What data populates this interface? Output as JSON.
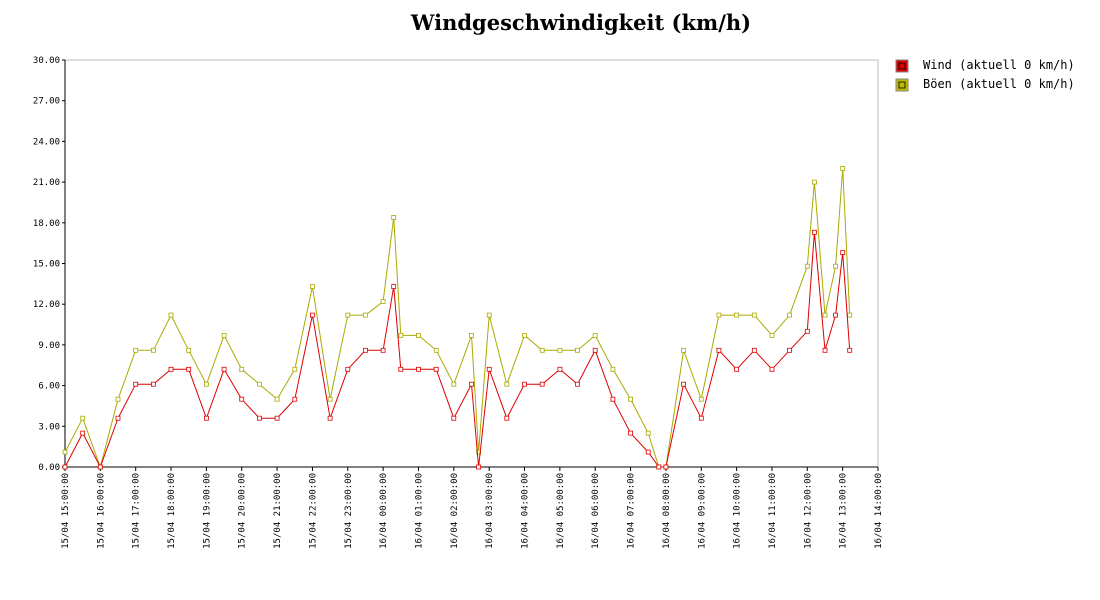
{
  "chart_data": {
    "type": "line",
    "title": "Windgeschwindigkeit (km/h)",
    "xlabel": "",
    "ylabel": "",
    "ylim": [
      0,
      30
    ],
    "yticks": [
      "0.00",
      "3.00",
      "6.00",
      "9.00",
      "12.00",
      "15.00",
      "18.00",
      "21.00",
      "24.00",
      "27.00",
      "30.00"
    ],
    "xlim_hours": [
      15,
      38
    ],
    "xticks": [
      "15/04 15:00:00",
      "15/04 16:00:00",
      "15/04 17:00:00",
      "15/04 18:00:00",
      "15/04 19:00:00",
      "15/04 20:00:00",
      "15/04 21:00:00",
      "15/04 22:00:00",
      "15/04 23:00:00",
      "16/04 00:00:00",
      "16/04 01:00:00",
      "16/04 02:00:00",
      "16/04 03:00:00",
      "16/04 04:00:00",
      "16/04 05:00:00",
      "16/04 06:00:00",
      "16/04 07:00:00",
      "16/04 08:00:00",
      "16/04 09:00:00",
      "16/04 10:00:00",
      "16/04 11:00:00",
      "16/04 12:00:00",
      "16/04 13:00:00",
      "16/04 14:00:00"
    ],
    "legend_position": "top-right, outside plot",
    "grid": false,
    "series": [
      {
        "name": "Wind (aktuell 0 km/h)",
        "color": "#dd0000",
        "marker_fill": "#dd0000",
        "x": [
          15.0,
          15.5,
          16.0,
          16.5,
          17.0,
          17.5,
          18.0,
          18.5,
          19.0,
          19.5,
          20.0,
          20.5,
          21.0,
          21.5,
          22.0,
          22.5,
          23.0,
          23.5,
          24.0,
          24.3,
          24.5,
          25.0,
          25.5,
          26.0,
          26.5,
          26.7,
          27.0,
          27.5,
          28.0,
          28.5,
          29.0,
          29.5,
          30.0,
          30.5,
          31.0,
          31.5,
          31.8,
          32.0,
          32.5,
          33.0,
          33.5,
          34.0,
          34.5,
          35.0,
          35.5,
          36.0,
          36.2,
          36.5,
          36.8,
          37.0,
          37.2
        ],
        "y": [
          0,
          2.5,
          0,
          3.6,
          6.1,
          6.1,
          7.2,
          7.2,
          3.6,
          7.2,
          5.0,
          3.6,
          3.6,
          5.0,
          11.2,
          3.6,
          7.2,
          8.6,
          8.6,
          13.3,
          7.2,
          7.2,
          7.2,
          3.6,
          6.1,
          0,
          7.2,
          3.6,
          6.1,
          6.1,
          7.2,
          6.1,
          8.6,
          5.0,
          2.5,
          1.1,
          0,
          0,
          6.1,
          3.6,
          8.6,
          7.2,
          8.6,
          7.2,
          8.6,
          10.0,
          17.3,
          8.6,
          11.2,
          15.8,
          8.6
        ]
      },
      {
        "name": "Böen (aktuell 0 km/h)",
        "color": "#aaaa00",
        "marker_fill": "#bbbb00",
        "x": [
          15.0,
          15.5,
          16.0,
          16.5,
          17.0,
          17.5,
          18.0,
          18.5,
          19.0,
          19.5,
          20.0,
          20.5,
          21.0,
          21.5,
          22.0,
          22.5,
          23.0,
          23.5,
          24.0,
          24.3,
          24.5,
          25.0,
          25.5,
          26.0,
          26.5,
          26.7,
          27.0,
          27.5,
          28.0,
          28.5,
          29.0,
          29.5,
          30.0,
          30.5,
          31.0,
          31.5,
          31.8,
          32.0,
          32.5,
          33.0,
          33.5,
          34.0,
          34.5,
          35.0,
          35.5,
          36.0,
          36.2,
          36.5,
          36.8,
          37.0,
          37.2
        ],
        "y": [
          1.1,
          3.6,
          0,
          5.0,
          8.6,
          8.6,
          11.2,
          8.6,
          6.1,
          9.7,
          7.2,
          6.1,
          5.0,
          7.2,
          13.3,
          5.0,
          11.2,
          11.2,
          12.2,
          18.4,
          9.7,
          9.7,
          8.6,
          6.1,
          9.7,
          1.1,
          11.2,
          6.1,
          9.7,
          8.6,
          8.6,
          8.6,
          9.7,
          7.2,
          5.0,
          2.5,
          0,
          0,
          8.6,
          5.0,
          11.2,
          11.2,
          11.2,
          9.7,
          11.2,
          14.8,
          21.0,
          11.2,
          14.8,
          22.0,
          11.2
        ]
      }
    ]
  }
}
